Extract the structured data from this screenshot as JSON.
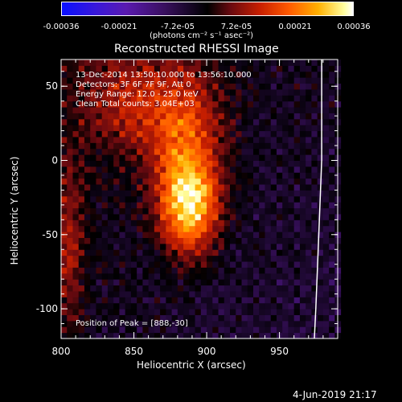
{
  "colorbar": {
    "tick_labels": [
      "-0.00036",
      "-0.00021",
      "-7.2e-05",
      "7.2e-05",
      "0.00021",
      "0.00036"
    ],
    "units": "(photons cm⁻² s⁻¹ asec⁻²)",
    "range": [
      -0.00036,
      0.00036
    ]
  },
  "chart_data": {
    "type": "heatmap",
    "title": "Reconstructed RHESSI Image",
    "xlabel": "Heliocentric X (arcsec)",
    "ylabel": "Heliocentric Y (arcsec)",
    "xlim": [
      800,
      990
    ],
    "ylim": [
      -120,
      68
    ],
    "x_ticks": [
      "800",
      "850",
      "900",
      "950"
    ],
    "y_ticks": [
      "50",
      "0",
      "-50",
      "-100"
    ],
    "peak": {
      "x": 888,
      "y": -30
    },
    "limb_curve": {
      "x": [
        974,
        975,
        977,
        979,
        979
      ],
      "y": [
        -120,
        -100,
        -50,
        0,
        68
      ]
    },
    "annotations": [
      "13-Dec-2014 13:50:10.000 to 13:56:10.000",
      "Detectors: 3F 6F 7F 9F, Att 0",
      "Energy Range: 12.0 - 25.0 keV",
      "Clean     Total counts: 3.04E+03"
    ],
    "peak_text": "Position of Peak = [888,-30]"
  },
  "timestamp": "4-Jun-2019 21:17"
}
